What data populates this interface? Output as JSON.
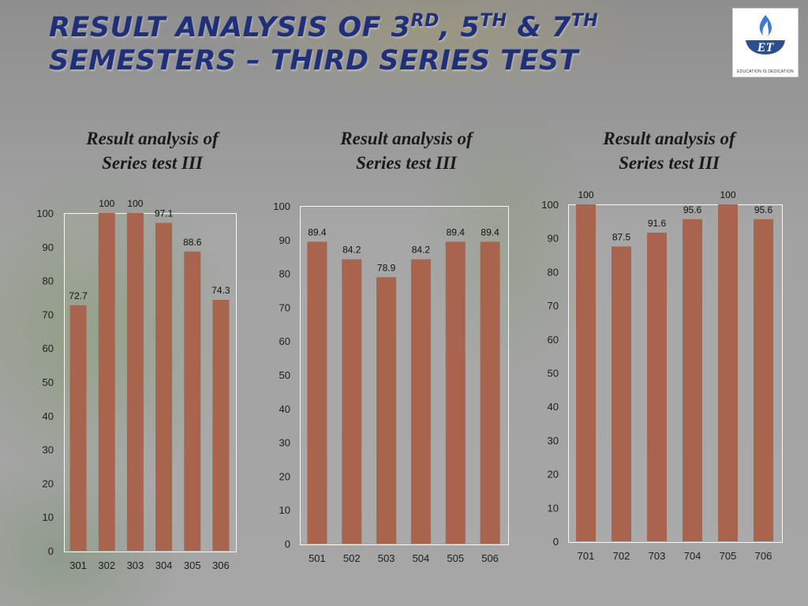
{
  "slide": {
    "title_line1_parts": [
      "RESULT ANALYSIS OF 3",
      "RD",
      ", 5",
      "TH",
      " & 7",
      "TH"
    ],
    "title_line2": "SEMESTERS – THIRD SERIES TEST",
    "logo_text": "EDUCATION IS DEDICATION",
    "logo_colors": {
      "flame": "#3a7bd5",
      "cup": "#2b4f8f"
    }
  },
  "colors": {
    "bar": "#a8644d",
    "title": "#1f2f7a"
  },
  "chart_data": [
    {
      "type": "bar",
      "title_line1": "Result analysis of",
      "title_line2": "Series test III",
      "categories": [
        "301",
        "302",
        "303",
        "304",
        "305",
        "306"
      ],
      "values": [
        72.7,
        100,
        100,
        97.1,
        88.6,
        74.3
      ],
      "ylim": [
        0,
        100
      ],
      "ytick_step": 10,
      "grid": false
    },
    {
      "type": "bar",
      "title_line1": "Result analysis of",
      "title_line2": "Series test III",
      "categories": [
        "501",
        "502",
        "503",
        "504",
        "505",
        "506"
      ],
      "values": [
        89.4,
        84.2,
        78.9,
        84.2,
        89.4,
        89.4
      ],
      "ylim": [
        0,
        100
      ],
      "ytick_step": 10,
      "grid": false
    },
    {
      "type": "bar",
      "title_line1": "Result analysis of",
      "title_line2": "Series test III",
      "categories": [
        "701",
        "702",
        "703",
        "704",
        "705",
        "706"
      ],
      "values": [
        100,
        87.5,
        91.6,
        95.6,
        100,
        95.6
      ],
      "ylim": [
        0,
        100
      ],
      "ytick_step": 10,
      "grid": false
    }
  ]
}
